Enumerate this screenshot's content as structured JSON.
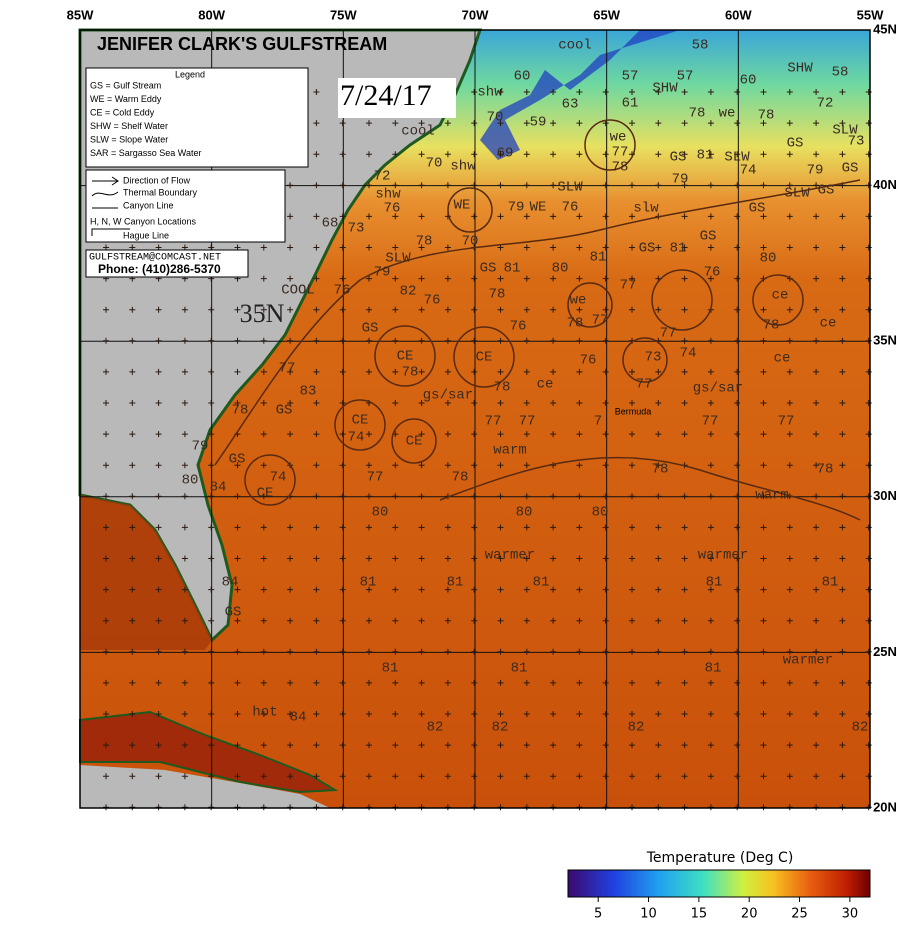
{
  "map": {
    "title": "JENIFER CLARK'S GULFSTREAM",
    "date": "7/24/17",
    "longitudes": [
      "85W",
      "80W",
      "75W",
      "70W",
      "65W",
      "60W",
      "55W"
    ],
    "latitudes": [
      "45N",
      "40N",
      "35N",
      "30N",
      "25N",
      "20N"
    ],
    "legend": {
      "title": "Legend",
      "entries": [
        "GS =   Gulf Stream",
        "WE =   Warm  Eddy",
        "CE =   Cold Eddy",
        "SHW = Shelf Water",
        "SLW = Slope Water",
        "SAR = Sargasso Sea Water"
      ]
    },
    "symbols": [
      "Direction of Flow",
      "Thermal Boundary",
      "Canyon Line",
      "H, N, W   Canyon Locations",
      "Hague Line"
    ],
    "contact": {
      "email": "GULFSTREAM@COMCAST.NET",
      "phone": "Phone: (410)286-5370"
    },
    "big_label": "35N",
    "place": "Bermuda",
    "labels": [
      "cool",
      "58",
      "SHW",
      "58",
      "60",
      "57",
      "57",
      "60",
      "shw",
      "SHW",
      "63",
      "61",
      "72",
      "70",
      "59",
      "we",
      "78",
      "78",
      "SLW",
      "cool",
      "we",
      "GS",
      "73",
      "69",
      "77",
      "GS",
      "81",
      "SLW",
      "74",
      "79",
      "GS",
      "70",
      "shw",
      "78",
      "72",
      "79",
      "SLW",
      "SLW",
      "GS",
      "shw",
      "WE",
      "79",
      "WE",
      "76",
      "slw",
      "GS",
      "76",
      "68",
      "73",
      "78",
      "70",
      "GS",
      "81",
      "GS",
      "80",
      "SLW",
      "79",
      "GS",
      "81",
      "80",
      "81",
      "76",
      "COOL",
      "76",
      "82",
      "78",
      "77",
      "ce",
      "76",
      "we",
      "78",
      "77",
      "ce",
      "78",
      "GS",
      "76",
      "77",
      "CE",
      "CE",
      "76",
      "74",
      "73",
      "ce",
      "77",
      "78",
      "ce",
      "78",
      "77",
      "gs/sar",
      "gs/sar",
      "83",
      "78",
      "GS",
      "CE",
      "77",
      "77",
      "7",
      "77",
      "77",
      "74",
      "CE",
      "79",
      "warm",
      "GS",
      "78",
      "78",
      "77",
      "78",
      "74",
      "80",
      "84",
      "CE",
      "warm",
      "80",
      "80",
      "80",
      "warmer",
      "warmer",
      "81",
      "81",
      "81",
      "81",
      "81",
      "84",
      "GS",
      "warmer",
      "81",
      "81",
      "81",
      "hot",
      "84",
      "82",
      "82",
      "82",
      "82"
    ],
    "colorbar": {
      "title": "Temperature (Deg C)",
      "range": [
        2,
        32
      ],
      "ticks": [
        5,
        10,
        15,
        20,
        25,
        30
      ]
    }
  }
}
